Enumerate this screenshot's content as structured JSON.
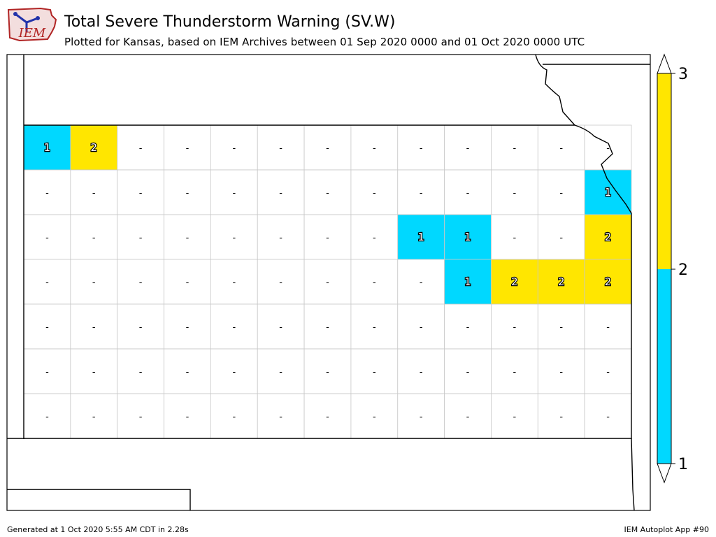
{
  "header": {
    "title": "Total Severe Thunderstorm Warning (SV.W)",
    "subtitle": "Plotted for Kansas, based on IEM Archives  between 01 Sep 2020 0000 and 01 Oct 2020 0000 UTC",
    "logo_text": "IEM"
  },
  "footer": {
    "generated": "Generated at 1 Oct 2020 5:55 AM CDT in 2.28s",
    "app": "IEM Autoplot App #90"
  },
  "colors": {
    "one": "#00d8ff",
    "two": "#ffe600",
    "none": "#ffffff",
    "border": "#c8c8c8"
  },
  "colorbar": {
    "labels": [
      "1",
      "2",
      "3"
    ]
  },
  "county_values": [
    [
      "1",
      "2",
      "-",
      "-",
      "-",
      "-",
      "-",
      "-",
      "-",
      "-",
      "-",
      "-",
      "-"
    ],
    [
      "-",
      "-",
      "-",
      "-",
      "-",
      "-",
      "-",
      "-",
      "-",
      "-",
      "-",
      "-",
      "1"
    ],
    [
      "-",
      "-",
      "-",
      "-",
      "-",
      "-",
      "-",
      "-",
      "1",
      "1",
      "-",
      "-",
      "2"
    ],
    [
      "-",
      "-",
      "-",
      "-",
      "-",
      "-",
      "-",
      "-",
      "-",
      "1",
      "2",
      "2",
      "2"
    ],
    [
      "-",
      "-",
      "-",
      "-",
      "-",
      "-",
      "-",
      "-",
      "-",
      "-",
      "-",
      "-",
      "-"
    ],
    [
      "-",
      "-",
      "-",
      "-",
      "-",
      "-",
      "-",
      "-",
      "-",
      "-",
      "-",
      "-",
      "-"
    ],
    [
      "-",
      "-",
      "-",
      "-",
      "-",
      "-",
      "-",
      "-",
      "-",
      "-",
      "-",
      "-",
      "-"
    ]
  ]
}
